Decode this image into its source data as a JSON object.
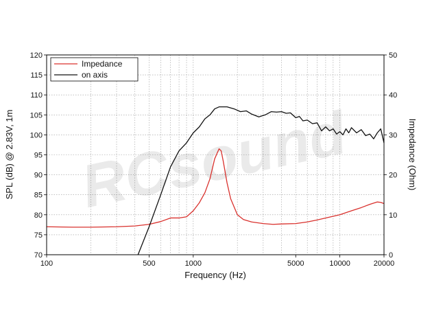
{
  "chart_data": {
    "type": "line",
    "xlabel": "Frequency (Hz)",
    "ylabel": "SPL (dB) @ 2.83V, 1m",
    "y2label": "Impedance (Ohm)",
    "x_scale": "log",
    "xlim": [
      100,
      20000
    ],
    "ylim": [
      70,
      120
    ],
    "y2lim": [
      0,
      50
    ],
    "grid": true,
    "legend_position": "top-left",
    "x_tick_labels": [
      "100",
      "500",
      "1000",
      "5000",
      "10000",
      "20000"
    ],
    "x_tick_values": [
      100,
      500,
      1000,
      5000,
      10000,
      20000
    ],
    "y_tick_labels": [
      "70",
      "75",
      "80",
      "85",
      "90",
      "95",
      "100",
      "105",
      "110",
      "115",
      "120"
    ],
    "y2_tick_labels": [
      "0",
      "10",
      "20",
      "30",
      "40",
      "50"
    ],
    "watermark": "RCsound",
    "series": [
      {
        "name": "Impedance",
        "axis": "right",
        "color": "#d9302c",
        "points": [
          [
            100,
            7
          ],
          [
            150,
            6.9
          ],
          [
            200,
            6.9
          ],
          [
            300,
            7
          ],
          [
            400,
            7.2
          ],
          [
            500,
            7.6
          ],
          [
            600,
            8.3
          ],
          [
            700,
            9.2
          ],
          [
            800,
            9.2
          ],
          [
            900,
            9.5
          ],
          [
            1000,
            11.0
          ],
          [
            1100,
            13.0
          ],
          [
            1200,
            15.5
          ],
          [
            1300,
            19.0
          ],
          [
            1400,
            24.0
          ],
          [
            1500,
            26.5
          ],
          [
            1550,
            26.0
          ],
          [
            1600,
            23.5
          ],
          [
            1700,
            18.0
          ],
          [
            1800,
            14.0
          ],
          [
            2000,
            10.0
          ],
          [
            2200,
            8.8
          ],
          [
            2500,
            8.2
          ],
          [
            3000,
            7.8
          ],
          [
            3500,
            7.6
          ],
          [
            4000,
            7.7
          ],
          [
            5000,
            7.8
          ],
          [
            6000,
            8.2
          ],
          [
            7000,
            8.7
          ],
          [
            8000,
            9.2
          ],
          [
            10000,
            10.0
          ],
          [
            12000,
            11.0
          ],
          [
            14000,
            11.8
          ],
          [
            16000,
            12.6
          ],
          [
            18000,
            13.2
          ],
          [
            19000,
            13.1
          ],
          [
            20000,
            12.8
          ]
        ]
      },
      {
        "name": "on axis",
        "axis": "left",
        "color": "#111111",
        "points": [
          [
            420,
            70
          ],
          [
            500,
            77
          ],
          [
            600,
            85
          ],
          [
            700,
            92
          ],
          [
            800,
            96
          ],
          [
            900,
            98
          ],
          [
            1000,
            100.5
          ],
          [
            1100,
            102
          ],
          [
            1200,
            104
          ],
          [
            1300,
            105
          ],
          [
            1400,
            106.5
          ],
          [
            1500,
            107
          ],
          [
            1700,
            107
          ],
          [
            1900,
            106.5
          ],
          [
            2100,
            105.8
          ],
          [
            2300,
            106
          ],
          [
            2500,
            105.2
          ],
          [
            2800,
            104.5
          ],
          [
            3100,
            105
          ],
          [
            3400,
            105.8
          ],
          [
            3700,
            105.7
          ],
          [
            4000,
            105.8
          ],
          [
            4300,
            105.4
          ],
          [
            4600,
            105.5
          ],
          [
            5000,
            104.3
          ],
          [
            5300,
            104.6
          ],
          [
            5600,
            103.5
          ],
          [
            6000,
            103.7
          ],
          [
            6500,
            102.8
          ],
          [
            7000,
            103
          ],
          [
            7500,
            101
          ],
          [
            8000,
            102
          ],
          [
            8500,
            101
          ],
          [
            9000,
            101.5
          ],
          [
            9500,
            100.2
          ],
          [
            10000,
            100.8
          ],
          [
            10500,
            100
          ],
          [
            11000,
            101.5
          ],
          [
            11500,
            100.5
          ],
          [
            12000,
            101.8
          ],
          [
            13000,
            100.5
          ],
          [
            14000,
            101.3
          ],
          [
            15000,
            99.8
          ],
          [
            16000,
            100.2
          ],
          [
            17000,
            99
          ],
          [
            18000,
            100.5
          ],
          [
            19000,
            101.5
          ],
          [
            20000,
            98
          ]
        ]
      }
    ]
  }
}
